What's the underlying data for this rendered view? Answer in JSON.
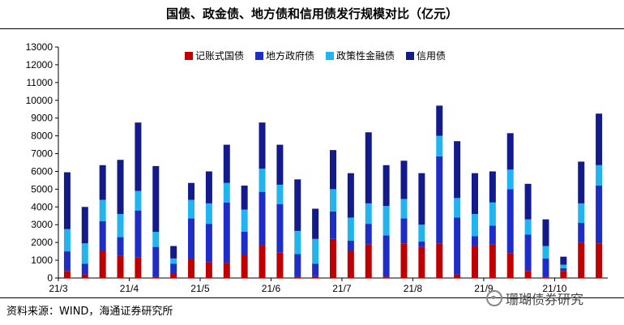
{
  "header": {
    "title": "国债、政金债、地方债和信用债发行规模对比（亿元）"
  },
  "footer": {
    "source": "资料来源：WIND，海通证券研究所",
    "watermark": "珊瑚债券研究"
  },
  "legend": [
    {
      "label": "记账式国债",
      "color": "#C00000"
    },
    {
      "label": "地方政府债",
      "color": "#1F2DC8"
    },
    {
      "label": "政策性金融债",
      "color": "#21B4EE"
    },
    {
      "label": "信用债",
      "color": "#131A8C"
    }
  ],
  "chart_data": {
    "type": "bar",
    "stacked": true,
    "title": "国债、政金债、地方债和信用债发行规模对比（亿元）",
    "xlabel": "",
    "ylabel": "",
    "ylim": [
      0,
      13000
    ],
    "yticks": [
      0,
      1000,
      2000,
      3000,
      4000,
      5000,
      6000,
      7000,
      8000,
      9000,
      10000,
      11000,
      12000,
      13000
    ],
    "x_tick_labels": [
      "21/3",
      "21/4",
      "21/5",
      "21/6",
      "21/7",
      "21/8",
      "21/9",
      "21/10"
    ],
    "x_tick_positions": [
      0,
      4,
      8,
      12,
      16,
      20,
      24,
      28
    ],
    "n_categories": 31,
    "series": [
      {
        "name": "记账式国债",
        "color": "#C00000",
        "values": [
          400,
          200,
          1550,
          1250,
          1150,
          50,
          250,
          1050,
          900,
          850,
          1300,
          1850,
          1450,
          50,
          100,
          2200,
          1550,
          1900,
          50,
          1950,
          1750,
          1950,
          200,
          1800,
          1900,
          1400,
          400,
          50,
          400,
          2000,
          1950
        ]
      },
      {
        "name": "地方政府债",
        "color": "#1F2DC8",
        "values": [
          1100,
          600,
          1650,
          1050,
          2650,
          1700,
          550,
          2300,
          2150,
          3400,
          1300,
          3000,
          2700,
          1300,
          700,
          1550,
          550,
          1150,
          2350,
          1400,
          300,
          4900,
          3200,
          550,
          1050,
          3600,
          2050,
          1050,
          150,
          1100,
          3250
        ]
      },
      {
        "name": "政策性金融债",
        "color": "#21B4EE",
        "values": [
          1250,
          1150,
          1200,
          1300,
          1100,
          850,
          300,
          1050,
          1150,
          1100,
          1250,
          1300,
          1100,
          1300,
          1400,
          1250,
          1300,
          1150,
          1650,
          1100,
          950,
          1150,
          1100,
          1250,
          1300,
          1100,
          850,
          700,
          200,
          1100,
          1150
        ]
      },
      {
        "name": "信用债",
        "color": "#131A8C",
        "values": [
          3200,
          2050,
          1950,
          3050,
          3850,
          3700,
          700,
          950,
          1800,
          2150,
          1350,
          2600,
          2250,
          2900,
          1700,
          2200,
          2500,
          4000,
          2300,
          2150,
          2900,
          1700,
          3200,
          2300,
          1750,
          2050,
          2000,
          1500,
          450,
          2350,
          2900
        ]
      }
    ]
  }
}
